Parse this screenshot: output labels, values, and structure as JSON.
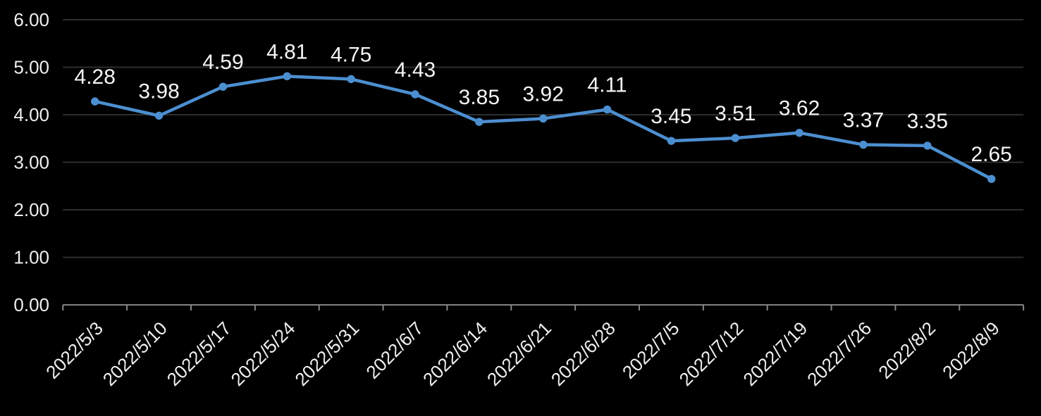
{
  "chart_data": {
    "type": "line",
    "title": "",
    "xlabel": "",
    "ylabel": "",
    "categories": [
      "2022/5/3",
      "2022/5/10",
      "2022/5/17",
      "2022/5/24",
      "2022/5/31",
      "2022/6/7",
      "2022/6/14",
      "2022/6/21",
      "2022/6/28",
      "2022/7/5",
      "2022/7/12",
      "2022/7/19",
      "2022/7/26",
      "2022/8/2",
      "2022/8/9"
    ],
    "series": [
      {
        "name": "series-1",
        "values": [
          4.28,
          3.98,
          4.59,
          4.81,
          4.75,
          4.43,
          3.85,
          3.92,
          4.11,
          3.45,
          3.51,
          3.62,
          3.37,
          3.35,
          2.65
        ],
        "data_labels": [
          "4.28",
          "3.98",
          "4.59",
          "4.81",
          "4.75",
          "4.43",
          "3.85",
          "3.92",
          "4.11",
          "3.45",
          "3.51",
          "3.62",
          "3.37",
          "3.35",
          "2.65"
        ]
      }
    ],
    "ylim": [
      0,
      6
    ],
    "ytick_step": 1,
    "ytick_labels": [
      "0.00",
      "1.00",
      "2.00",
      "3.00",
      "4.00",
      "5.00",
      "6.00"
    ],
    "grid": true,
    "legend_position": "none",
    "colors": {
      "background": "#000000",
      "line": "#4c8fd0",
      "marker": "#4c8fd0",
      "gridline": "#2e2e2e",
      "axis": "#868686",
      "axis_label": "#efefef",
      "data_label": "#f5f5f5"
    }
  }
}
